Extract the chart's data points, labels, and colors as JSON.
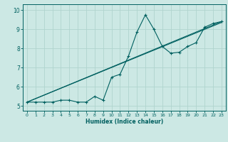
{
  "xlabel": "Humidex (Indice chaleur)",
  "ylabel": "",
  "bg_color": "#cce8e4",
  "grid_color": "#b0d4ce",
  "line_color": "#006060",
  "xlim": [
    -0.5,
    23.5
  ],
  "ylim": [
    4.75,
    10.3
  ],
  "xticks": [
    0,
    1,
    2,
    3,
    4,
    5,
    6,
    7,
    8,
    9,
    10,
    11,
    12,
    13,
    14,
    15,
    16,
    17,
    18,
    19,
    20,
    21,
    22,
    23
  ],
  "yticks": [
    5,
    6,
    7,
    8,
    9,
    10
  ],
  "line1_x": [
    0,
    1,
    2,
    3,
    4,
    5,
    6,
    7,
    8,
    9,
    10,
    11,
    12,
    13,
    14,
    15,
    16,
    17,
    18,
    19,
    20,
    21,
    22,
    23
  ],
  "line1_y": [
    5.2,
    5.2,
    5.2,
    5.2,
    5.3,
    5.3,
    5.2,
    5.2,
    5.5,
    5.3,
    6.5,
    6.65,
    7.6,
    8.85,
    9.75,
    9.0,
    8.1,
    7.75,
    7.8,
    8.1,
    8.3,
    9.1,
    9.3,
    9.4
  ],
  "line2_x": [
    0,
    23
  ],
  "line2_y": [
    5.2,
    9.4
  ],
  "line3_x": [
    0,
    23
  ],
  "line3_y": [
    5.2,
    9.35
  ]
}
